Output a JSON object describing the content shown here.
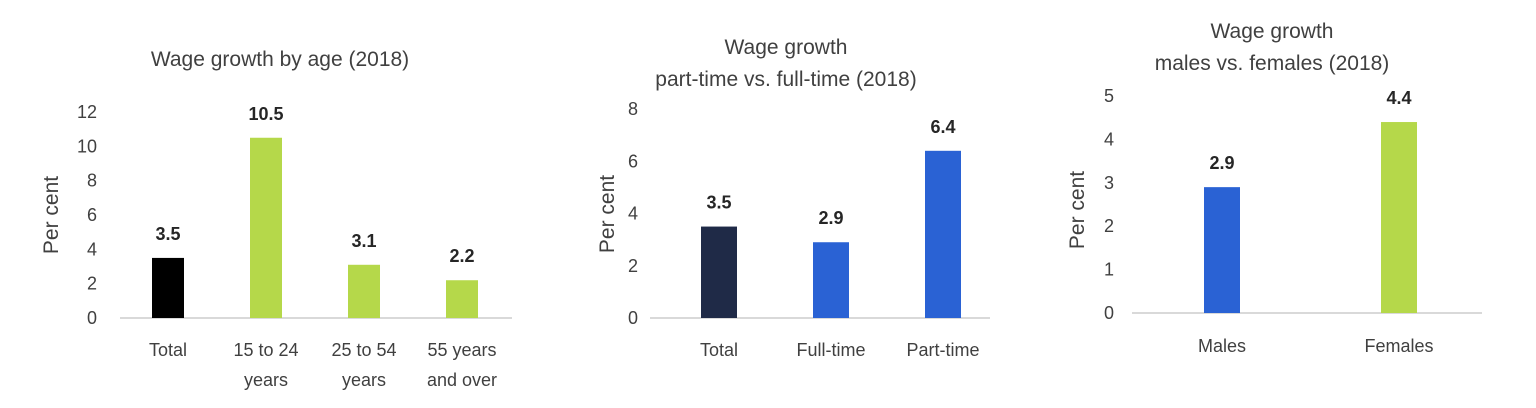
{
  "chart_data": [
    {
      "type": "bar",
      "title": [
        "Wage growth by age (2018)"
      ],
      "ylabel": "Per cent",
      "ylim": [
        0,
        12
      ],
      "yticks": [
        "0",
        "2",
        "4",
        "6",
        "8",
        "10",
        "12"
      ],
      "categories": [
        [
          "Total"
        ],
        [
          "15 to 24",
          "years"
        ],
        [
          "25 to 54",
          "years"
        ],
        [
          "55 years",
          "and over"
        ]
      ],
      "values": [
        3.5,
        10.5,
        3.1,
        2.2
      ],
      "value_labels": [
        "3.5",
        "10.5",
        "3.1",
        "2.2"
      ],
      "colors": [
        "#000000",
        "#b5d84a",
        "#b5d84a",
        "#b5d84a"
      ]
    },
    {
      "type": "bar",
      "title": [
        "Wage growth",
        "part-time vs. full-time (2018)"
      ],
      "ylabel": "Per cent",
      "ylim": [
        0,
        8
      ],
      "yticks": [
        "0",
        "2",
        "4",
        "6",
        "8"
      ],
      "categories": [
        [
          "Total"
        ],
        [
          "Full-time"
        ],
        [
          "Part-time"
        ]
      ],
      "values": [
        3.5,
        2.9,
        6.4
      ],
      "value_labels": [
        "3.5",
        "2.9",
        "6.4"
      ],
      "colors": [
        "#1f2a47",
        "#2a62d4",
        "#2a62d4"
      ]
    },
    {
      "type": "bar",
      "title": [
        "Wage growth",
        "males vs. females (2018)"
      ],
      "ylabel": "Per cent",
      "ylim": [
        0,
        5
      ],
      "yticks": [
        "0",
        "1",
        "2",
        "3",
        "4",
        "5"
      ],
      "categories": [
        [
          "Males"
        ],
        [
          "Females"
        ]
      ],
      "values": [
        2.9,
        4.4
      ],
      "value_labels": [
        "2.9",
        "4.4"
      ],
      "colors": [
        "#2a62d4",
        "#b5d84a"
      ]
    }
  ]
}
